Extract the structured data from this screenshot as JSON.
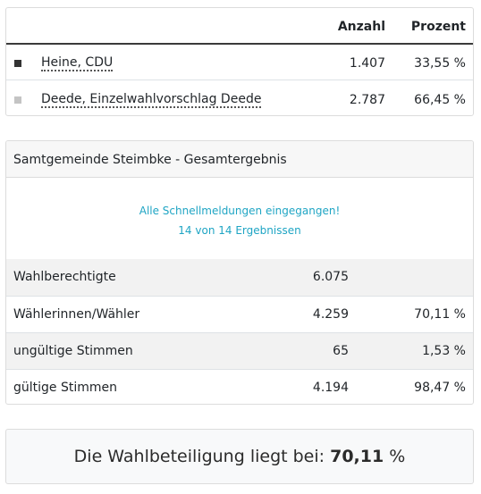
{
  "candidates_table": {
    "headers": {
      "count": "Anzahl",
      "percent": "Prozent"
    },
    "rows": [
      {
        "name": "Heine, CDU",
        "count": "1.407",
        "percent": "33,55 %",
        "color": "#333333"
      },
      {
        "name": "Deede, Einzelwahlvorschlag Deede",
        "count": "2.787",
        "percent": "66,45 %",
        "color": "#c4c4c4"
      }
    ]
  },
  "summary": {
    "title": "Samtgemeinde Steimbke - Gesamtergebnis",
    "notice_line1": "Alle Schnellmeldungen eingegangen!",
    "notice_line2": "14 von 14 Ergebnissen",
    "rows": [
      {
        "label": "Wahlberechtigte",
        "value": "6.075",
        "percent": ""
      },
      {
        "label": "Wählerinnen/Wähler",
        "value": "4.259",
        "percent": "70,11 %"
      },
      {
        "label": "ungültige Stimmen",
        "value": "65",
        "percent": "1,53 %"
      },
      {
        "label": "gültige Stimmen",
        "value": "4.194",
        "percent": "98,47 %"
      }
    ]
  },
  "turnout": {
    "prefix": "Die Wahlbeteiligung liegt bei:",
    "value": "70,11",
    "unit": "%"
  }
}
